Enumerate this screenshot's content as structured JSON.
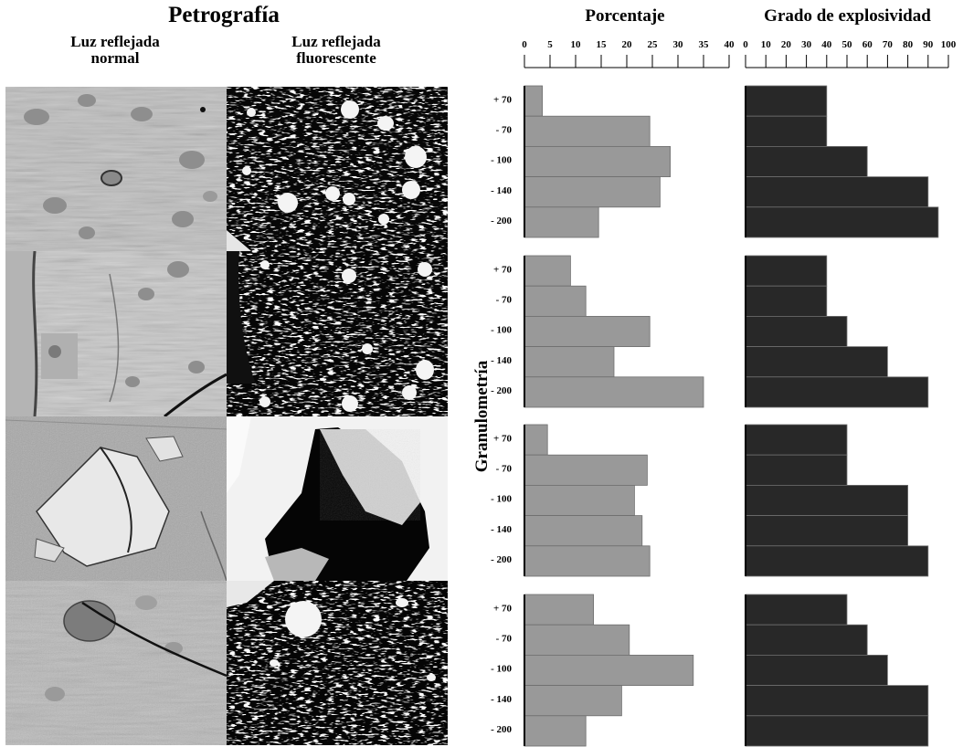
{
  "headers": {
    "petrography": "Petrografía",
    "normal_light": "Luz reflejada\nnormal",
    "fluorescent_light": "Luz reflejada\nfluorescente",
    "percentage": "Porcentaje",
    "explosivity": "Grado de explosividad",
    "granulometry": "Granulometría"
  },
  "colors": {
    "percentage_bar": "#999999",
    "explosivity_bar": "#282828",
    "bar_stroke": "#6e6e6e"
  },
  "chart_data": [
    {
      "type": "bar",
      "orientation": "horizontal",
      "title": "Porcentaje",
      "categories": [
        "+ 70",
        "- 70",
        "- 100",
        "- 140",
        "- 200"
      ],
      "xlim": [
        0,
        40
      ],
      "xticks": [
        0,
        5,
        10,
        15,
        20,
        25,
        30,
        35,
        40
      ],
      "ylabel": "Granulometría",
      "panels": [
        {
          "values": [
            3.5,
            24.5,
            28.5,
            26.5,
            14.5
          ]
        },
        {
          "values": [
            9,
            12,
            24.5,
            17.5,
            35
          ]
        },
        {
          "values": [
            4.5,
            24,
            21.5,
            23,
            24.5
          ]
        },
        {
          "values": [
            13.5,
            20.5,
            33,
            19,
            12
          ]
        }
      ]
    },
    {
      "type": "bar",
      "orientation": "horizontal",
      "title": "Grado de explosividad",
      "categories": [
        "+ 70",
        "- 70",
        "- 100",
        "- 140",
        "- 200"
      ],
      "xlim": [
        0,
        100
      ],
      "xticks": [
        0,
        10,
        20,
        30,
        40,
        50,
        60,
        70,
        80,
        90,
        100
      ],
      "panels": [
        {
          "values": [
            40,
            40,
            60,
            90,
            95
          ]
        },
        {
          "values": [
            40,
            40,
            50,
            70,
            90
          ]
        },
        {
          "values": [
            50,
            50,
            80,
            80,
            90
          ]
        },
        {
          "values": [
            50,
            60,
            70,
            90,
            90
          ]
        }
      ]
    }
  ]
}
